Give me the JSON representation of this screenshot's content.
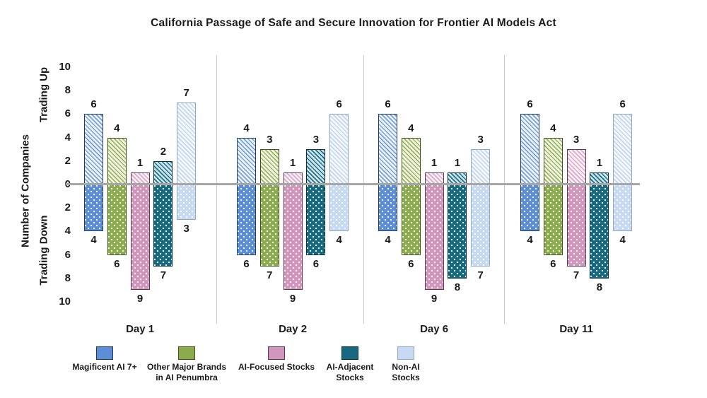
{
  "title": "California Passage of Safe and Secure Innovation for Frontier AI Models Act",
  "axis": {
    "ylabel": "Number of Companies",
    "up_label": "Trading Up",
    "down_label": "Trading Down",
    "tick_labels": [
      "10",
      "8",
      "6",
      "4",
      "2",
      "0",
      "2",
      "4",
      "6",
      "8",
      "10"
    ]
  },
  "chart_data": {
    "type": "bar",
    "variant": "diverging-grouped-hatched",
    "title": "California Passage of Safe and Secure Innovation for Frontier AI Models Act",
    "ylabel": "Number of Companies",
    "axis_up_label": "Trading Up",
    "axis_down_label": "Trading Down",
    "ylim": [
      -10,
      10
    ],
    "tick_step": 2,
    "grid": false,
    "categories": [
      "Day 1",
      "Day 2",
      "Day 6",
      "Day 11"
    ],
    "series": [
      {
        "name": "Magificent AI 7+",
        "trading_up": [
          6,
          4,
          6,
          6
        ],
        "trading_down": [
          4,
          6,
          4,
          4
        ],
        "colors": {
          "fill": "#5C8ED6",
          "stripe": "#79A2D9",
          "stripe_bg": "#EDF3FA",
          "border": "#1E3A5F"
        }
      },
      {
        "name": "Other Major Brands in AI Penumbra",
        "trading_up": [
          4,
          3,
          4,
          4
        ],
        "trading_down": [
          6,
          7,
          6,
          6
        ],
        "colors": {
          "fill": "#8BAB4E",
          "stripe": "#9CB560",
          "stripe_bg": "#F2F5E6",
          "border": "#3E501A"
        }
      },
      {
        "name": "AI-Focused Stocks",
        "trading_up": [
          1,
          1,
          1,
          3
        ],
        "trading_down": [
          9,
          9,
          9,
          7
        ],
        "colors": {
          "fill": "#D096BB",
          "stripe": "#D9A9C8",
          "stripe_bg": "#FAF0F6",
          "border": "#5E3550"
        }
      },
      {
        "name": "AI-Adjacent Stocks",
        "trading_up": [
          2,
          3,
          1,
          1
        ],
        "trading_down": [
          7,
          6,
          8,
          8
        ],
        "colors": {
          "fill": "#17697F",
          "stripe": "#1F7389",
          "stripe_bg": "#CFE3EA",
          "border": "#072F3B"
        }
      },
      {
        "name": "Non-AI Stocks",
        "trading_up": [
          7,
          6,
          3,
          6
        ],
        "trading_down": [
          3,
          4,
          7,
          4
        ],
        "colors": {
          "fill": "#C7DAF1",
          "stripe": "#C2D5EC",
          "stripe_bg": "#F5F9FD",
          "border": "#8CA9CB"
        }
      }
    ],
    "up_pattern": "diagonal-hatch",
    "down_pattern": "white-dots",
    "zero_line_color": "#a6a6a6",
    "divider_color": "#c8c8c8",
    "text_color": "#1a1a1a",
    "legend_position": "bottom"
  },
  "legend": {
    "items": [
      {
        "label": "Magificent AI 7+"
      },
      {
        "label": "Other Major Brands\nin AI Penumbra"
      },
      {
        "label": "AI-Focused Stocks"
      },
      {
        "label": "AI-Adjacent\nStocks"
      },
      {
        "label": "Non-AI\nStocks"
      }
    ]
  }
}
